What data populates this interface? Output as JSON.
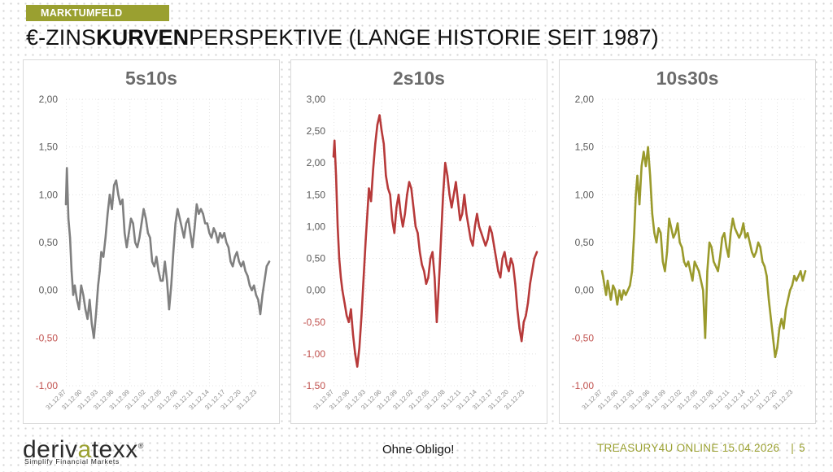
{
  "header": {
    "tag": "MARKTUMFELD",
    "title_prefix": "€-ZINS",
    "title_bold": "KURVEN",
    "title_suffix": "PERSPEKTIVE (LANGE HISTORIE SEIT 1987)"
  },
  "footer": {
    "logo_text_a": "deriv",
    "logo_text_b": "a",
    "logo_text_c": "texx",
    "logo_registered": "®",
    "tagline": "Simplify Financial Markets",
    "note": "Ohne Obligo!",
    "info": "TREASURY4U ONLINE 15.04.2026",
    "separator": "|",
    "page": "5"
  },
  "chart_data": [
    {
      "type": "line",
      "title": "5s10s",
      "color": "#808080",
      "ylim": [
        -1.0,
        2.0
      ],
      "yticks": [
        "2,00",
        "1,50",
        "1,00",
        "0,50",
        "0,00",
        "-0,50",
        "-1,00"
      ],
      "ytick_values": [
        2.0,
        1.5,
        1.0,
        0.5,
        0.0,
        -0.5,
        -1.0
      ],
      "negative_tick_color": "#c0504d",
      "x_start": 1987.92,
      "x_end": 2026.29,
      "xticks": [
        "31.12.87",
        "31.12.90",
        "31.12.93",
        "31.12.96",
        "31.12.99",
        "31.12.02",
        "31.12.05",
        "31.12.08",
        "31.12.11",
        "31.12.14",
        "31.12.17",
        "31.12.20",
        "31.12.23"
      ],
      "xtick_values": [
        1988.0,
        1991.0,
        1994.0,
        1997.0,
        2000.0,
        2003.0,
        2006.0,
        2009.0,
        2012.0,
        2015.0,
        2018.0,
        2021.0,
        2024.0
      ],
      "grid": true,
      "x": [
        1987.92,
        1988.1,
        1988.4,
        1988.7,
        1989.0,
        1989.3,
        1989.6,
        1990.0,
        1990.4,
        1990.8,
        1991.2,
        1991.6,
        1992.0,
        1992.4,
        1992.8,
        1993.2,
        1993.6,
        1994.0,
        1994.3,
        1994.6,
        1995.0,
        1995.4,
        1995.8,
        1996.2,
        1996.6,
        1997.0,
        1997.4,
        1997.8,
        1998.2,
        1998.6,
        1999.0,
        1999.4,
        1999.8,
        2000.2,
        2000.6,
        2001.0,
        2001.4,
        2001.8,
        2002.2,
        2002.6,
        2003.0,
        2003.4,
        2003.8,
        2004.2,
        2004.6,
        2005.0,
        2005.4,
        2005.8,
        2006.2,
        2006.6,
        2007.0,
        2007.4,
        2007.8,
        2008.2,
        2008.6,
        2009.0,
        2009.4,
        2009.8,
        2010.2,
        2010.6,
        2011.0,
        2011.4,
        2011.8,
        2012.2,
        2012.6,
        2013.0,
        2013.4,
        2013.8,
        2014.2,
        2014.6,
        2015.0,
        2015.4,
        2015.8,
        2016.2,
        2016.6,
        2017.0,
        2017.4,
        2017.8,
        2018.2,
        2018.6,
        2019.0,
        2019.4,
        2019.8,
        2020.2,
        2020.6,
        2021.0,
        2021.4,
        2021.8,
        2022.2,
        2022.6,
        2023.0,
        2023.4,
        2023.8,
        2024.2,
        2024.6,
        2025.0,
        2025.4,
        2025.8,
        2026.29
      ],
      "y": [
        0.9,
        1.28,
        0.75,
        0.55,
        0.2,
        -0.05,
        0.05,
        -0.1,
        -0.2,
        0.05,
        -0.05,
        -0.2,
        -0.3,
        -0.1,
        -0.35,
        -0.5,
        -0.25,
        0.05,
        0.2,
        0.4,
        0.35,
        0.55,
        0.8,
        1.0,
        0.85,
        1.1,
        1.15,
        1.0,
        0.9,
        0.95,
        0.6,
        0.45,
        0.6,
        0.75,
        0.7,
        0.5,
        0.45,
        0.55,
        0.7,
        0.85,
        0.75,
        0.6,
        0.55,
        0.3,
        0.25,
        0.35,
        0.2,
        0.1,
        0.1,
        0.3,
        0.1,
        -0.2,
        0.05,
        0.4,
        0.7,
        0.85,
        0.75,
        0.65,
        0.55,
        0.7,
        0.75,
        0.6,
        0.45,
        0.65,
        0.9,
        0.8,
        0.85,
        0.8,
        0.7,
        0.7,
        0.6,
        0.55,
        0.65,
        0.6,
        0.5,
        0.6,
        0.55,
        0.6,
        0.5,
        0.45,
        0.3,
        0.25,
        0.35,
        0.4,
        0.3,
        0.25,
        0.3,
        0.2,
        0.15,
        0.05,
        0.0,
        0.05,
        -0.05,
        -0.1,
        -0.25,
        -0.05,
        0.1,
        0.25,
        0.3
      ],
      "xlabel": "",
      "ylabel": ""
    },
    {
      "type": "line",
      "title": "2s10s",
      "color": "#b73a3a",
      "ylim": [
        -1.5,
        3.0
      ],
      "yticks": [
        "3,00",
        "2,50",
        "2,00",
        "1,50",
        "1,00",
        "0,50",
        "0,00",
        "-0,50",
        "-1,00",
        "-1,50"
      ],
      "ytick_values": [
        3.0,
        2.5,
        2.0,
        1.5,
        1.0,
        0.5,
        0.0,
        -0.5,
        -1.0,
        -1.5
      ],
      "negative_tick_color": "#c0504d",
      "x_start": 1987.92,
      "x_end": 2026.29,
      "xticks": [
        "31.12.87",
        "31.12.90",
        "31.12.93",
        "31.12.96",
        "31.12.99",
        "31.12.02",
        "31.12.05",
        "31.12.08",
        "31.12.11",
        "31.12.14",
        "31.12.17",
        "31.12.20",
        "31.12.23"
      ],
      "xtick_values": [
        1988.0,
        1991.0,
        1994.0,
        1997.0,
        2000.0,
        2003.0,
        2006.0,
        2009.0,
        2012.0,
        2015.0,
        2018.0,
        2021.0,
        2024.0
      ],
      "grid": true,
      "x": [
        1987.92,
        1988.1,
        1988.4,
        1988.7,
        1989.0,
        1989.3,
        1989.6,
        1990.0,
        1990.4,
        1990.8,
        1991.2,
        1991.6,
        1992.0,
        1992.4,
        1992.8,
        1993.2,
        1993.6,
        1994.0,
        1994.3,
        1994.6,
        1995.0,
        1995.4,
        1995.8,
        1996.2,
        1996.6,
        1997.0,
        1997.4,
        1997.8,
        1998.2,
        1998.6,
        1999.0,
        1999.4,
        1999.8,
        2000.2,
        2000.6,
        2001.0,
        2001.4,
        2001.8,
        2002.2,
        2002.6,
        2003.0,
        2003.4,
        2003.8,
        2004.2,
        2004.6,
        2005.0,
        2005.4,
        2005.8,
        2006.2,
        2006.6,
        2007.0,
        2007.4,
        2007.8,
        2008.2,
        2008.6,
        2009.0,
        2009.4,
        2009.8,
        2010.2,
        2010.6,
        2011.0,
        2011.4,
        2011.8,
        2012.2,
        2012.6,
        2013.0,
        2013.4,
        2013.8,
        2014.2,
        2014.6,
        2015.0,
        2015.4,
        2015.8,
        2016.2,
        2016.6,
        2017.0,
        2017.4,
        2017.8,
        2018.2,
        2018.6,
        2019.0,
        2019.4,
        2019.8,
        2020.2,
        2020.6,
        2021.0,
        2021.4,
        2021.8,
        2022.2,
        2022.6,
        2023.0,
        2023.4,
        2023.8,
        2024.2,
        2024.6,
        2025.0,
        2025.4,
        2025.8,
        2026.29
      ],
      "y": [
        2.1,
        2.35,
        1.8,
        1.0,
        0.5,
        0.2,
        0.0,
        -0.2,
        -0.4,
        -0.5,
        -0.3,
        -0.7,
        -1.0,
        -1.2,
        -0.9,
        -0.4,
        0.2,
        0.8,
        1.2,
        1.6,
        1.4,
        1.9,
        2.3,
        2.6,
        2.75,
        2.5,
        2.3,
        1.8,
        1.6,
        1.5,
        1.1,
        0.9,
        1.3,
        1.5,
        1.2,
        1.0,
        1.2,
        1.5,
        1.7,
        1.6,
        1.3,
        1.0,
        0.9,
        0.6,
        0.4,
        0.3,
        0.1,
        0.2,
        0.5,
        0.6,
        0.2,
        -0.5,
        0.1,
        0.8,
        1.5,
        2.0,
        1.8,
        1.5,
        1.3,
        1.5,
        1.7,
        1.4,
        1.1,
        1.2,
        1.5,
        1.2,
        1.0,
        0.8,
        0.7,
        1.0,
        1.2,
        1.0,
        0.9,
        0.8,
        0.7,
        0.8,
        1.0,
        0.9,
        0.7,
        0.5,
        0.3,
        0.2,
        0.5,
        0.6,
        0.4,
        0.3,
        0.5,
        0.4,
        0.1,
        -0.3,
        -0.6,
        -0.8,
        -0.5,
        -0.4,
        -0.2,
        0.1,
        0.3,
        0.5,
        0.6
      ],
      "xlabel": "",
      "ylabel": ""
    },
    {
      "type": "line",
      "title": "10s30s",
      "color": "#9a9a2c",
      "ylim": [
        -1.0,
        2.0
      ],
      "yticks": [
        "2,00",
        "1,50",
        "1,00",
        "0,50",
        "0,00",
        "-0,50",
        "-1,00"
      ],
      "ytick_values": [
        2.0,
        1.5,
        1.0,
        0.5,
        0.0,
        -0.5,
        -1.0
      ],
      "negative_tick_color": "#c0504d",
      "x_start": 1987.92,
      "x_end": 2026.29,
      "xticks": [
        "31.12.87",
        "31.12.90",
        "31.12.93",
        "31.12.96",
        "31.12.99",
        "31.12.02",
        "31.12.05",
        "31.12.08",
        "31.12.11",
        "31.12.14",
        "31.12.17",
        "31.12.20",
        "31.12.23"
      ],
      "xtick_values": [
        1988.0,
        1991.0,
        1994.0,
        1997.0,
        2000.0,
        2003.0,
        2006.0,
        2009.0,
        2012.0,
        2015.0,
        2018.0,
        2021.0,
        2024.0
      ],
      "grid": true,
      "x": [
        1987.92,
        1988.1,
        1988.4,
        1988.7,
        1989.0,
        1989.3,
        1989.6,
        1990.0,
        1990.4,
        1990.8,
        1991.2,
        1991.6,
        1992.0,
        1992.4,
        1992.8,
        1993.2,
        1993.6,
        1994.0,
        1994.3,
        1994.6,
        1995.0,
        1995.4,
        1995.8,
        1996.2,
        1996.6,
        1997.0,
        1997.4,
        1997.8,
        1998.2,
        1998.6,
        1999.0,
        1999.4,
        1999.8,
        2000.2,
        2000.6,
        2001.0,
        2001.4,
        2001.8,
        2002.2,
        2002.6,
        2003.0,
        2003.4,
        2003.8,
        2004.2,
        2004.6,
        2005.0,
        2005.4,
        2005.8,
        2006.2,
        2006.6,
        2007.0,
        2007.4,
        2007.8,
        2008.2,
        2008.6,
        2009.0,
        2009.4,
        2009.8,
        2010.2,
        2010.6,
        2011.0,
        2011.4,
        2011.8,
        2012.2,
        2012.6,
        2013.0,
        2013.4,
        2013.8,
        2014.2,
        2014.6,
        2015.0,
        2015.4,
        2015.8,
        2016.2,
        2016.6,
        2017.0,
        2017.4,
        2017.8,
        2018.2,
        2018.6,
        2019.0,
        2019.4,
        2019.8,
        2020.2,
        2020.6,
        2021.0,
        2021.4,
        2021.8,
        2022.2,
        2022.6,
        2023.0,
        2023.4,
        2023.8,
        2024.2,
        2024.6,
        2025.0,
        2025.4,
        2025.8,
        2026.29
      ],
      "y": [
        0.2,
        0.15,
        0.05,
        -0.05,
        0.1,
        0.0,
        -0.1,
        0.05,
        0.0,
        -0.15,
        0.0,
        -0.1,
        0.0,
        -0.05,
        0.0,
        0.05,
        0.2,
        0.6,
        1.0,
        1.2,
        0.9,
        1.3,
        1.45,
        1.3,
        1.5,
        1.2,
        0.8,
        0.6,
        0.5,
        0.65,
        0.6,
        0.3,
        0.2,
        0.4,
        0.75,
        0.65,
        0.55,
        0.6,
        0.7,
        0.5,
        0.45,
        0.3,
        0.25,
        0.3,
        0.2,
        0.1,
        0.3,
        0.25,
        0.2,
        0.1,
        0.0,
        -0.5,
        0.2,
        0.5,
        0.45,
        0.3,
        0.25,
        0.2,
        0.35,
        0.55,
        0.6,
        0.45,
        0.35,
        0.6,
        0.75,
        0.65,
        0.6,
        0.55,
        0.6,
        0.7,
        0.55,
        0.6,
        0.5,
        0.4,
        0.35,
        0.4,
        0.5,
        0.45,
        0.3,
        0.25,
        0.15,
        -0.1,
        -0.3,
        -0.5,
        -0.7,
        -0.6,
        -0.4,
        -0.3,
        -0.4,
        -0.2,
        -0.1,
        0.0,
        0.05,
        0.15,
        0.1,
        0.15,
        0.2,
        0.1,
        0.2
      ],
      "xlabel": "",
      "ylabel": ""
    }
  ]
}
